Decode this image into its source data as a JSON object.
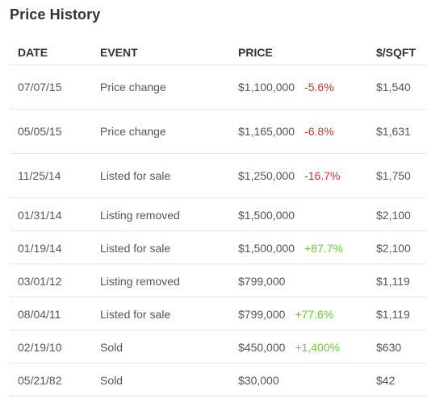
{
  "title": "Price History",
  "colors": {
    "negative": "#d0342c",
    "positive": "#66cc33"
  },
  "table": {
    "headers": {
      "date": "DATE",
      "event": "EVENT",
      "price": "PRICE",
      "sqft": "$/SQFT"
    },
    "rows": [
      {
        "date": "07/07/15",
        "event": "Price change",
        "price": "$1,100,000",
        "change": "-5.6%",
        "change_type": "neg",
        "sqft": "$1,540"
      },
      {
        "date": "05/05/15",
        "event": "Price change",
        "price": "$1,165,000",
        "change": "-6.8%",
        "change_type": "neg",
        "sqft": "$1,631"
      },
      {
        "date": "11/25/14",
        "event": "Listed for sale",
        "price": "$1,250,000",
        "change": "-16.7%",
        "change_type": "neg",
        "sqft": "$1,750"
      },
      {
        "date": "01/31/14",
        "event": "Listing removed",
        "price": "$1,500,000",
        "change": "",
        "change_type": "",
        "sqft": "$2,100"
      },
      {
        "date": "01/19/14",
        "event": "Listed for sale",
        "price": "$1,500,000",
        "change": "+87.7%",
        "change_type": "pos",
        "sqft": "$2,100"
      },
      {
        "date": "03/01/12",
        "event": "Listing removed",
        "price": "$799,000",
        "change": "",
        "change_type": "",
        "sqft": "$1,119"
      },
      {
        "date": "08/04/11",
        "event": "Listed for sale",
        "price": "$799,000",
        "change": "+77.6%",
        "change_type": "pos",
        "sqft": "$1,119"
      },
      {
        "date": "02/19/10",
        "event": "Sold",
        "price": "$450,000",
        "change": "+1,400%",
        "change_type": "pos",
        "sqft": "$630"
      },
      {
        "date": "05/21/82",
        "event": "Sold",
        "price": "$30,000",
        "change": "",
        "change_type": "",
        "sqft": "$42"
      }
    ]
  }
}
